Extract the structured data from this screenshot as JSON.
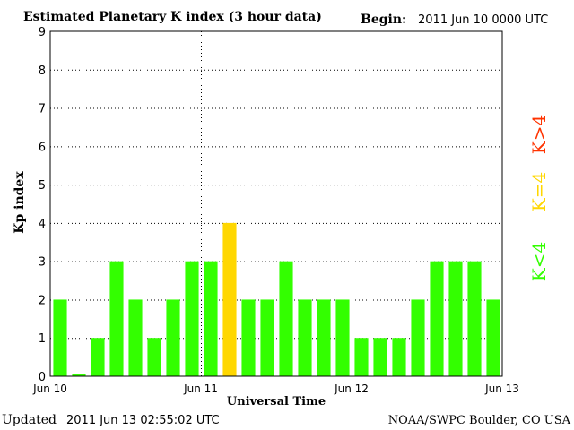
{
  "header": {
    "title": "Estimated Planetary K index (3 hour data)",
    "begin_label": "Begin:",
    "begin_value": "2011 Jun 10 0000 UTC"
  },
  "footer": {
    "updated_label": "Updated",
    "updated_value": "2011 Jun 13 02:55:02 UTC",
    "credit": "NOAA/SWPC Boulder, CO USA"
  },
  "colors": {
    "below4": "#33ff00",
    "equal4": "#ffd700",
    "above4": "#ff3300",
    "grid": "#000000"
  },
  "chart_data": {
    "type": "bar",
    "xlabel": "Universal Time",
    "ylabel": "Kp index",
    "ylim": [
      0,
      9
    ],
    "yticks": [
      "0",
      "1",
      "2",
      "3",
      "4",
      "5",
      "6",
      "7",
      "8",
      "9"
    ],
    "xtick_labels": [
      "Jun 10",
      "Jun 11",
      "Jun 12",
      "Jun 13"
    ],
    "categories": [
      "Jun 10 00",
      "Jun 10 03",
      "Jun 10 06",
      "Jun 10 09",
      "Jun 10 12",
      "Jun 10 15",
      "Jun 10 18",
      "Jun 10 21",
      "Jun 11 00",
      "Jun 11 03",
      "Jun 11 06",
      "Jun 11 09",
      "Jun 11 12",
      "Jun 11 15",
      "Jun 11 18",
      "Jun 11 21",
      "Jun 12 00",
      "Jun 12 03",
      "Jun 12 06",
      "Jun 12 09",
      "Jun 12 12",
      "Jun 12 15",
      "Jun 12 18",
      "Jun 12 21"
    ],
    "values": [
      2,
      0.07,
      1,
      3,
      2,
      1,
      2,
      3,
      3,
      4,
      2,
      2,
      3,
      2,
      2,
      2,
      1,
      1,
      1,
      2,
      3,
      3,
      3,
      2
    ],
    "grid": true,
    "legend": [
      {
        "label": "K<4",
        "color": "#33ff00"
      },
      {
        "label": "K=4",
        "color": "#ffd700"
      },
      {
        "label": "K>4",
        "color": "#ff3300"
      }
    ],
    "legend_position": "right"
  }
}
